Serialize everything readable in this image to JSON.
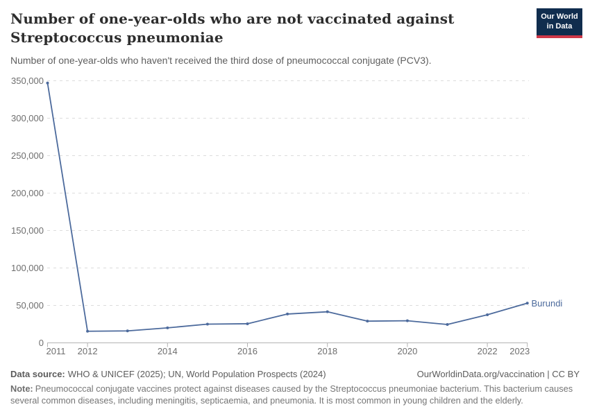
{
  "header": {
    "title": "Number of one-year-olds who are not vaccinated against Streptococcus pneumoniae",
    "subtitle": "Number of one-year-olds who haven't received the third dose of pneumococcal conjugate (PCV3)."
  },
  "logo": {
    "line1": "Our World",
    "line2": "in Data",
    "bg_color": "#102d4e",
    "accent_color": "#cf3848"
  },
  "chart_data": {
    "type": "line",
    "title": "Number of one-year-olds who are not vaccinated against Streptococcus pneumoniae",
    "entity_label": "Burundi",
    "x": [
      2011,
      2012,
      2013,
      2014,
      2015,
      2016,
      2017,
      2018,
      2019,
      2020,
      2021,
      2022,
      2023
    ],
    "series": [
      {
        "name": "Burundi",
        "color": "#4C6A9C",
        "values": [
          347000,
          15500,
          16000,
          20000,
          25000,
          25500,
          38500,
          41500,
          29000,
          29500,
          24500,
          37500,
          53000
        ]
      }
    ],
    "ylim": [
      0,
      350000
    ],
    "yticks": [
      0,
      50000,
      100000,
      150000,
      200000,
      250000,
      300000,
      350000
    ],
    "xtick_labels": [
      "2011",
      "2012",
      "2014",
      "2016",
      "2018",
      "2020",
      "2022",
      "2023"
    ],
    "grid": "horizontal-dashed",
    "legend": "line-end-label",
    "colors": {
      "line": "#4C6A9C",
      "grid": "#dcdcdc",
      "axis": "#b3b3b3",
      "tick_text": "#6e6e6e"
    }
  },
  "footer": {
    "datasource_label": "Data source:",
    "datasource_text": "WHO & UNICEF (2025); UN, World Population Prospects (2024)",
    "link": "OurWorldinData.org/vaccination | CC BY",
    "note_label": "Note:",
    "note_text": "Pneumococcal conjugate vaccines protect against diseases caused by the Streptococcus pneumoniae bacterium. This bacterium causes several common diseases, including meningitis, septicaemia, and pneumonia. It is most common in young children and the elderly."
  }
}
